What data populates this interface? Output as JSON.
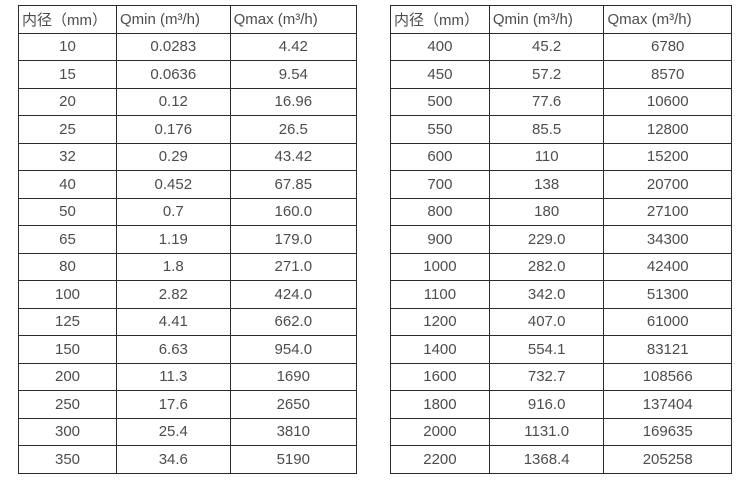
{
  "colors": {
    "background": "#ffffff",
    "border": "#2b2b2b",
    "text": "#4d4d4d"
  },
  "tables": [
    {
      "name": "flow-rate-table-small-diameters",
      "headers": [
        "内径（mm）",
        "Qmin (m³/h)",
        "Qmax (m³/h)"
      ],
      "rows": [
        [
          "10",
          "0.0283",
          "4.42"
        ],
        [
          "15",
          "0.0636",
          "9.54"
        ],
        [
          "20",
          "0.12",
          "16.96"
        ],
        [
          "25",
          "0.176",
          "26.5"
        ],
        [
          "32",
          "0.29",
          "43.42"
        ],
        [
          "40",
          "0.452",
          "67.85"
        ],
        [
          "50",
          "0.7",
          "160.0"
        ],
        [
          "65",
          "1.19",
          "179.0"
        ],
        [
          "80",
          "1.8",
          "271.0"
        ],
        [
          "100",
          "2.82",
          "424.0"
        ],
        [
          "125",
          "4.41",
          "662.0"
        ],
        [
          "150",
          "6.63",
          "954.0"
        ],
        [
          "200",
          "11.3",
          "1690"
        ],
        [
          "250",
          "17.6",
          "2650"
        ],
        [
          "300",
          "25.4",
          "3810"
        ],
        [
          "350",
          "34.6",
          "5190"
        ]
      ]
    },
    {
      "name": "flow-rate-table-large-diameters",
      "headers": [
        "内径（mm）",
        "Qmin (m³/h)",
        "Qmax (m³/h)"
      ],
      "rows": [
        [
          "400",
          "45.2",
          "6780"
        ],
        [
          "450",
          "57.2",
          "8570"
        ],
        [
          "500",
          "77.6",
          "10600"
        ],
        [
          "550",
          "85.5",
          "12800"
        ],
        [
          "600",
          "110",
          "15200"
        ],
        [
          "700",
          "138",
          "20700"
        ],
        [
          "800",
          "180",
          "27100"
        ],
        [
          "900",
          "229.0",
          "34300"
        ],
        [
          "1000",
          "282.0",
          "42400"
        ],
        [
          "1100",
          "342.0",
          "51300"
        ],
        [
          "1200",
          "407.0",
          "61000"
        ],
        [
          "1400",
          "554.1",
          "83121"
        ],
        [
          "1600",
          "732.7",
          "108566"
        ],
        [
          "1800",
          "916.0",
          "137404"
        ],
        [
          "2000",
          "1131.0",
          "169635"
        ],
        [
          "2200",
          "1368.4",
          "205258"
        ]
      ]
    }
  ]
}
